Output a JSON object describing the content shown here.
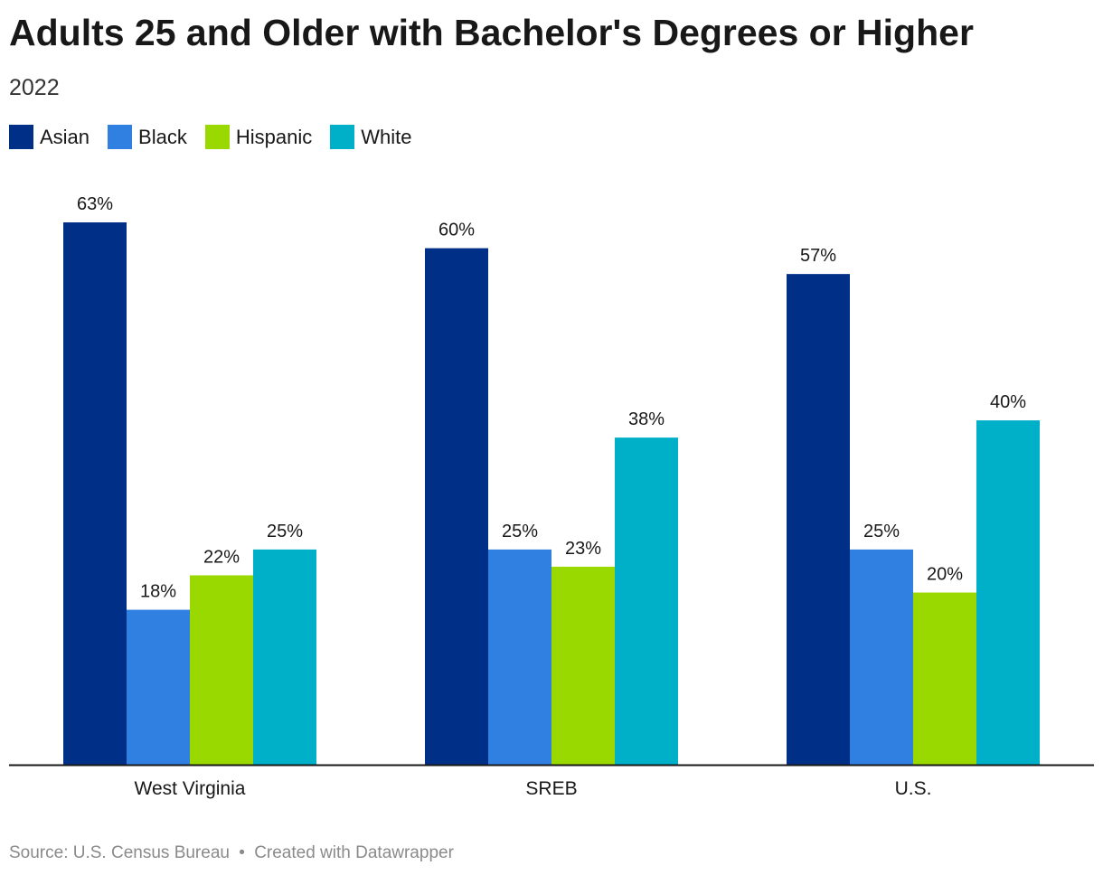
{
  "title": "Adults 25 and Older with Bachelor's Degrees or Higher",
  "subtitle": "2022",
  "legend": [
    {
      "label": "Asian",
      "color": "#002f87"
    },
    {
      "label": "Black",
      "color": "#2f80e0"
    },
    {
      "label": "Hispanic",
      "color": "#99d900"
    },
    {
      "label": "White",
      "color": "#00afc8"
    }
  ],
  "chart_data": {
    "type": "bar",
    "categories": [
      "West Virginia",
      "SREB",
      "U.S."
    ],
    "series": [
      {
        "name": "Asian",
        "values": [
          63,
          60,
          57
        ],
        "labels": [
          "63%",
          "60%",
          "57%"
        ],
        "color": "#002f87"
      },
      {
        "name": "Black",
        "values": [
          18,
          25,
          25
        ],
        "labels": [
          "18%",
          "25%",
          "25%"
        ],
        "color": "#2f80e0"
      },
      {
        "name": "Hispanic",
        "values": [
          22,
          23,
          20
        ],
        "labels": [
          "22%",
          "23%",
          "20%"
        ],
        "color": "#99d900"
      },
      {
        "name": "White",
        "values": [
          25,
          38,
          40
        ],
        "labels": [
          "25%",
          "38%",
          "40%"
        ],
        "color": "#00afc8"
      }
    ],
    "ylim": [
      0,
      63
    ],
    "grid": false,
    "legend_position": "top-left"
  },
  "footer": {
    "source": "Source: U.S. Census Bureau",
    "separator": "•",
    "credit": "Created with Datawrapper"
  }
}
